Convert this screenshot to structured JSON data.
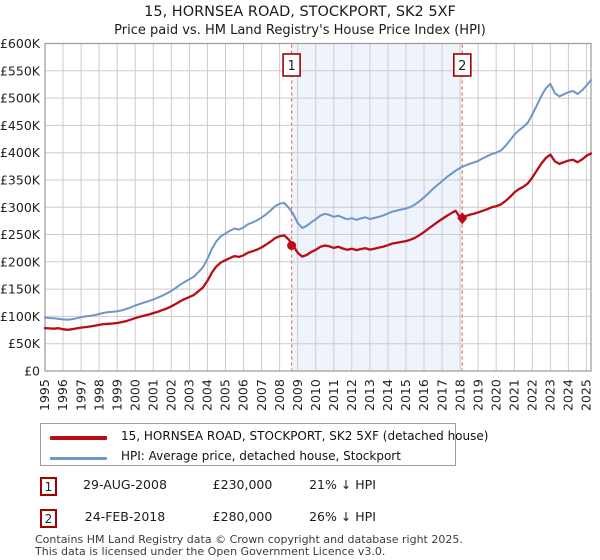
{
  "title": "15, HORNSEA ROAD, STOCKPORT, SK2 5XF",
  "subtitle": "Price paid vs. HM Land Registry's House Price Index (HPI)",
  "colors": {
    "price_line": "#b90c15",
    "hpi_line": "#6e96c8",
    "sale_dashed_line": "#ee7777",
    "marker_box_border": "#a50000",
    "shade": "#eff3fb",
    "grid": "#cccccc",
    "plot_border": "#999999"
  },
  "chart_data": {
    "type": "line",
    "title": "15, HORNSEA ROAD, STOCKPORT, SK2 5XF",
    "subtitle": "Price paid vs. HM Land Registry's House Price Index (HPI)",
    "xlabel": "",
    "ylabel": "",
    "xlim": [
      1995,
      2025.25
    ],
    "ylim": [
      0,
      600000
    ],
    "grid": true,
    "legend_position": "bottom",
    "x_start": 1995,
    "x_step": 0.25,
    "x_ticks": [
      "1995",
      "1996",
      "1997",
      "1998",
      "1999",
      "2000",
      "2001",
      "2002",
      "2003",
      "2004",
      "2005",
      "2006",
      "2007",
      "2008",
      "2009",
      "2010",
      "2011",
      "2012",
      "2013",
      "2014",
      "2015",
      "2016",
      "2017",
      "2018",
      "2019",
      "2020",
      "2021",
      "2022",
      "2023",
      "2024",
      "2025"
    ],
    "y_ticks": [
      {
        "v": 0,
        "label": "£0"
      },
      {
        "v": 50000,
        "label": "£50K"
      },
      {
        "v": 100000,
        "label": "£100K"
      },
      {
        "v": 150000,
        "label": "£150K"
      },
      {
        "v": 200000,
        "label": "£200K"
      },
      {
        "v": 250000,
        "label": "£250K"
      },
      {
        "v": 300000,
        "label": "£300K"
      },
      {
        "v": 350000,
        "label": "£350K"
      },
      {
        "v": 400000,
        "label": "£400K"
      },
      {
        "v": 450000,
        "label": "£450K"
      },
      {
        "v": 500000,
        "label": "£500K"
      },
      {
        "v": 550000,
        "label": "£550K"
      },
      {
        "v": 600000,
        "label": "£600K"
      }
    ],
    "series": [
      {
        "name": "HPI: Average price, detached house, Stockport",
        "color": "#6e96c8",
        "width": 2.0,
        "values_unit": "GBP (thousands)",
        "values": [
          98,
          97,
          96.5,
          95.5,
          94.5,
          94,
          95,
          96.5,
          98.5,
          100,
          101,
          102.5,
          104.5,
          106.5,
          108,
          108.5,
          109.5,
          111,
          113.5,
          116.5,
          120,
          123,
          125.5,
          128,
          131,
          134.5,
          138,
          142,
          147,
          152.5,
          158.5,
          163.5,
          168,
          173,
          181,
          190,
          205,
          224,
          238,
          247,
          252,
          257,
          261,
          259,
          263,
          269,
          272,
          276,
          281,
          287,
          294,
          302,
          306.5,
          308,
          299,
          288,
          271,
          262,
          266,
          272.5,
          278,
          284.5,
          288,
          286,
          282.5,
          284.5,
          281,
          278,
          280,
          277,
          279.5,
          281.5,
          278.5,
          280.5,
          282.5,
          285,
          288.5,
          292,
          294,
          296,
          297.5,
          300.5,
          305,
          311,
          318,
          326,
          334,
          341,
          348,
          355,
          361,
          367,
          372,
          376,
          379.5,
          382,
          385,
          389.5,
          393.5,
          397.5,
          400,
          404,
          412,
          422,
          433,
          441,
          447,
          455,
          470,
          487,
          504,
          518,
          526,
          509,
          503,
          507,
          511,
          513,
          507.5,
          514,
          523,
          533
        ]
      },
      {
        "name": "15, HORNSEA ROAD, STOCKPORT, SK2 5XF (detached house)",
        "color": "#b90c15",
        "width": 2.3,
        "values_unit": "GBP (thousands)",
        "values": [
          78.5,
          78,
          77.5,
          78.5,
          76.5,
          75.5,
          76.5,
          78,
          79.5,
          80.5,
          81.5,
          83,
          84.5,
          86,
          86.5,
          87,
          88,
          89.5,
          91.5,
          94,
          97,
          99.5,
          101.5,
          103.5,
          106,
          108.5,
          111.5,
          114.5,
          118.5,
          123,
          128,
          132,
          135.5,
          139.5,
          146,
          153,
          165,
          180.5,
          192,
          199,
          203,
          207,
          210.5,
          209,
          212,
          217,
          219.5,
          222.5,
          226.5,
          231.5,
          237,
          243.5,
          247,
          248.5,
          241,
          230,
          216.5,
          209.5,
          212.5,
          218,
          222,
          227.5,
          230,
          228.5,
          225.5,
          227.5,
          224.5,
          222,
          224,
          221.5,
          223.5,
          225,
          222.5,
          224,
          226,
          228,
          230.5,
          233.5,
          235,
          236.5,
          238,
          240.5,
          244,
          249,
          254.5,
          261,
          267,
          273,
          278.5,
          284,
          289,
          293.5,
          281,
          283.5,
          286,
          288,
          290.5,
          293.5,
          296.5,
          300,
          302,
          305,
          311,
          318.5,
          327,
          333,
          337.5,
          343.5,
          354.5,
          367.5,
          380,
          390.5,
          396.5,
          384,
          379.5,
          382.5,
          385.5,
          387,
          382.5,
          387.5,
          394.5,
          398.5
        ]
      }
    ],
    "sales": [
      {
        "label": "1",
        "x": 2008.66,
        "value": 230000,
        "shape": "circle"
      },
      {
        "label": "2",
        "x": 2018.12,
        "value": 280000,
        "shape": "diamond"
      }
    ],
    "shade_region": {
      "from": 2008.66,
      "to": 2018.12
    }
  },
  "legend": {
    "items": [
      {
        "label": "15, HORNSEA ROAD, STOCKPORT, SK2 5XF (detached house)",
        "color": "#b90c15"
      },
      {
        "label": "HPI: Average price, detached house, Stockport",
        "color": "#6e96c8"
      }
    ]
  },
  "transactions": [
    {
      "num": "1",
      "date": "29-AUG-2008",
      "price": "£230,000",
      "hpi": "21% ↓ HPI"
    },
    {
      "num": "2",
      "date": "24-FEB-2018",
      "price": "£280,000",
      "hpi": "26% ↓ HPI"
    }
  ],
  "footer": {
    "line1": "Contains HM Land Registry data © Crown copyright and database right 2025.",
    "line2": "This data is licensed under the Open Government Licence v3.0."
  }
}
